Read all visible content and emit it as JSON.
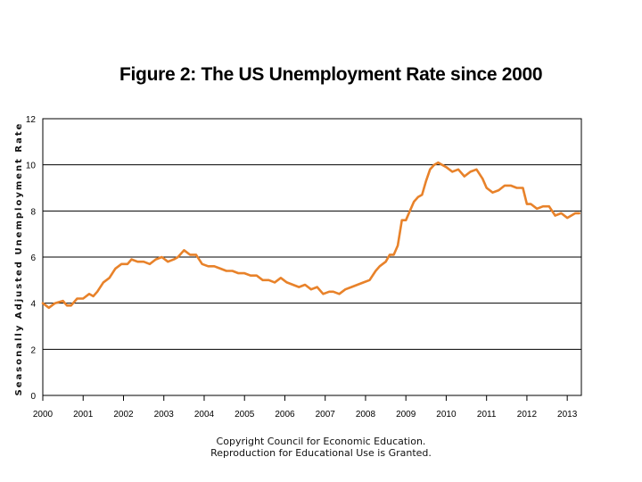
{
  "chart_data": {
    "type": "line",
    "title": "Figure 2: The US Unemployment Rate since 2000",
    "xlabel": "",
    "ylabel": "Seasonally Adjusted Unemployment Rate",
    "xlim": [
      2000,
      2013.35
    ],
    "ylim": [
      0,
      12
    ],
    "yticks": [
      "0",
      "2",
      "4",
      "6",
      "8",
      "10",
      "12"
    ],
    "xticks": [
      "2000",
      "2001",
      "2002",
      "2003",
      "2004",
      "2005",
      "2006",
      "2007",
      "2008",
      "2009",
      "2010",
      "2011",
      "2012",
      "2013"
    ],
    "grid": true,
    "series": [
      {
        "name": "Unemployment Rate",
        "color": "#e8822a",
        "x": [
          2000.0,
          2000.15,
          2000.3,
          2000.5,
          2000.6,
          2000.7,
          2000.85,
          2001.0,
          2001.15,
          2001.25,
          2001.35,
          2001.5,
          2001.65,
          2001.8,
          2001.95,
          2002.1,
          2002.2,
          2002.35,
          2002.5,
          2002.65,
          2002.8,
          2002.95,
          2003.1,
          2003.25,
          2003.35,
          2003.5,
          2003.65,
          2003.8,
          2003.95,
          2004.1,
          2004.25,
          2004.4,
          2004.55,
          2004.7,
          2004.85,
          2005.0,
          2005.15,
          2005.3,
          2005.45,
          2005.6,
          2005.75,
          2005.9,
          2006.05,
          2006.2,
          2006.35,
          2006.5,
          2006.65,
          2006.8,
          2006.95,
          2007.1,
          2007.2,
          2007.35,
          2007.5,
          2007.65,
          2007.8,
          2007.95,
          2008.1,
          2008.25,
          2008.35,
          2008.5,
          2008.6,
          2008.7,
          2008.8,
          2008.9,
          2009.0,
          2009.1,
          2009.2,
          2009.3,
          2009.4,
          2009.5,
          2009.6,
          2009.7,
          2009.8,
          2009.9,
          2010.0,
          2010.15,
          2010.3,
          2010.45,
          2010.6,
          2010.75,
          2010.9,
          2011.0,
          2011.15,
          2011.3,
          2011.45,
          2011.6,
          2011.75,
          2011.9,
          2012.0,
          2012.1,
          2012.25,
          2012.4,
          2012.55,
          2012.7,
          2012.85,
          2013.0,
          2013.1,
          2013.2,
          2013.3
        ],
        "y": [
          4.0,
          3.8,
          4.0,
          4.1,
          3.9,
          3.9,
          4.2,
          4.2,
          4.4,
          4.3,
          4.5,
          4.9,
          5.1,
          5.5,
          5.7,
          5.7,
          5.9,
          5.8,
          5.8,
          5.7,
          5.9,
          6.0,
          5.8,
          5.9,
          6.0,
          6.3,
          6.1,
          6.1,
          5.7,
          5.6,
          5.6,
          5.5,
          5.4,
          5.4,
          5.3,
          5.3,
          5.2,
          5.2,
          5.0,
          5.0,
          4.9,
          5.1,
          4.9,
          4.8,
          4.7,
          4.8,
          4.6,
          4.7,
          4.4,
          4.5,
          4.5,
          4.4,
          4.6,
          4.7,
          4.8,
          4.9,
          5.0,
          5.4,
          5.6,
          5.8,
          6.1,
          6.1,
          6.5,
          7.6,
          7.6,
          8.0,
          8.4,
          8.6,
          8.7,
          9.3,
          9.8,
          10.0,
          10.1,
          10.0,
          9.9,
          9.7,
          9.8,
          9.5,
          9.7,
          9.8,
          9.4,
          9.0,
          8.8,
          8.9,
          9.1,
          9.1,
          9.0,
          9.0,
          8.3,
          8.3,
          8.1,
          8.2,
          8.2,
          7.8,
          7.9,
          7.7,
          7.8,
          7.9,
          7.9
        ]
      }
    ]
  },
  "footer": {
    "line1": "Copyright Council for Economic Education.",
    "line2": "Reproduction for Educational Use is Granted."
  }
}
